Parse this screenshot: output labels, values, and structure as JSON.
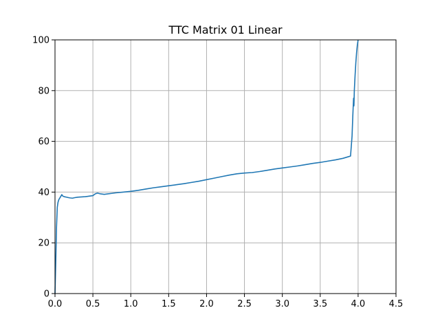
{
  "chart_data": {
    "type": "line",
    "title": "TTC Matrix 01 Linear",
    "xlabel": "",
    "ylabel": "",
    "xlim": [
      0,
      4.5
    ],
    "ylim": [
      0,
      100
    ],
    "x_ticks": [
      0.0,
      0.5,
      1.0,
      1.5,
      2.0,
      2.5,
      3.0,
      3.5,
      4.0,
      4.5
    ],
    "y_ticks": [
      0,
      20,
      40,
      60,
      80,
      100
    ],
    "x_tick_labels": [
      "0.0",
      "0.5",
      "1.0",
      "1.5",
      "2.0",
      "2.5",
      "3.0",
      "3.5",
      "4.0",
      "4.5"
    ],
    "y_tick_labels": [
      "0",
      "20",
      "40",
      "60",
      "80",
      "100"
    ],
    "grid": true,
    "series": [
      {
        "color": "#1f77b4",
        "x": [
          0.0,
          0.01,
          0.02,
          0.03,
          0.04,
          0.05,
          0.06,
          0.07,
          0.08,
          0.09,
          0.1,
          0.12,
          0.15,
          0.18,
          0.2,
          0.23,
          0.26,
          0.3,
          0.35,
          0.4,
          0.45,
          0.5,
          0.53,
          0.56,
          0.6,
          0.65,
          0.7,
          0.75,
          0.8,
          0.9,
          1.0,
          1.1,
          1.2,
          1.3,
          1.4,
          1.5,
          1.6,
          1.7,
          1.8,
          1.9,
          2.0,
          2.1,
          2.2,
          2.3,
          2.4,
          2.5,
          2.6,
          2.7,
          2.8,
          2.9,
          3.0,
          3.1,
          3.2,
          3.3,
          3.4,
          3.5,
          3.6,
          3.7,
          3.8,
          3.9,
          3.92,
          3.93,
          3.94,
          3.945,
          3.95,
          3.96,
          3.97,
          3.98,
          3.99,
          4.0
        ],
        "y": [
          0,
          12,
          26,
          34,
          36,
          37,
          37.5,
          38,
          38.5,
          39,
          38.5,
          38.2,
          38.0,
          37.8,
          37.7,
          37.6,
          37.8,
          38.0,
          38.1,
          38.2,
          38.4,
          38.6,
          39.3,
          39.6,
          39.3,
          39.1,
          39.3,
          39.5,
          39.7,
          40.0,
          40.3,
          40.7,
          41.2,
          41.7,
          42.1,
          42.5,
          42.9,
          43.3,
          43.8,
          44.3,
          44.9,
          45.5,
          46.1,
          46.7,
          47.2,
          47.5,
          47.7,
          48.1,
          48.6,
          49.1,
          49.5,
          49.9,
          50.3,
          50.8,
          51.3,
          51.7,
          52.2,
          52.7,
          53.3,
          54.2,
          62.0,
          70.0,
          77.0,
          74.0,
          80.0,
          86.0,
          91.0,
          95.0,
          98.0,
          100.0
        ]
      }
    ],
    "colors": {
      "line": "#1f77b4",
      "grid": "#b0b0b0",
      "axes": "#000000"
    }
  }
}
